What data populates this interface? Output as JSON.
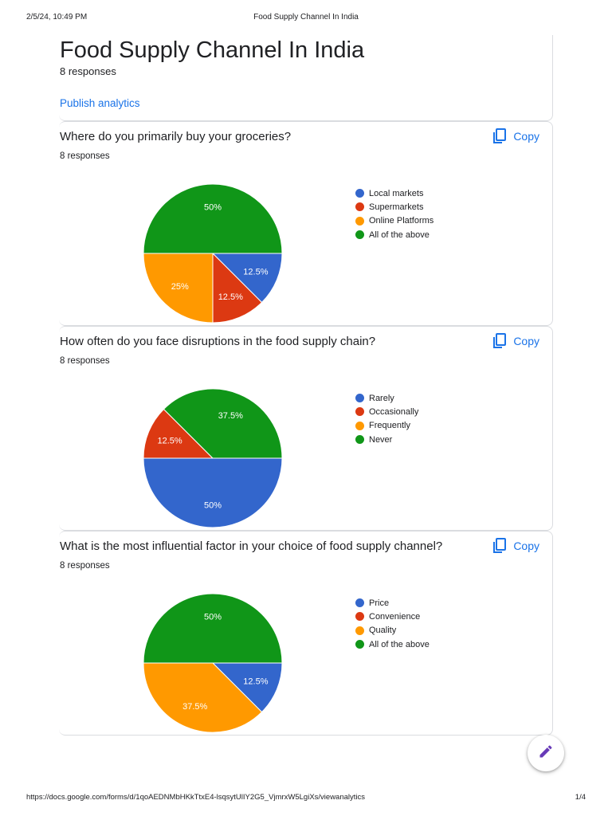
{
  "print_header": {
    "datetime": "2/5/24, 10:49 PM",
    "title": "Food Supply Channel In India"
  },
  "print_footer": {
    "url": "https://docs.google.com/forms/d/1qoAEDNMbHKkTtxE4-lsqsytUlIY2G5_VjmrxW5LgiXs/viewanalytics",
    "page": "1/4"
  },
  "form": {
    "title": "Food Supply Channel In India",
    "responses": "8 responses",
    "publish_label": "Publish analytics"
  },
  "copy_label": "Copy",
  "colors": {
    "blue": "#3366cc",
    "red": "#dc3912",
    "orange": "#ff9900",
    "green": "#109618",
    "link": "#1a73e8",
    "fab_icon": "#673ab7"
  },
  "icons": {
    "copy": "copy-icon",
    "edit": "pencil-icon"
  },
  "questions": [
    {
      "title": "Where do you primarily buy your groceries?",
      "responses": "8 responses",
      "legend": [
        "Local markets",
        "Supermarkets",
        "Online Platforms",
        "All of the above"
      ],
      "slice_labels": [
        "12.5%",
        "12.5%",
        "25%",
        "50%"
      ]
    },
    {
      "title": "How often do you face disruptions in the food supply chain?",
      "responses": "8 responses",
      "legend": [
        "Rarely",
        "Occasionally",
        "Frequently",
        "Never"
      ],
      "slice_labels": [
        "50%",
        "12.5%",
        "",
        "37.5%"
      ]
    },
    {
      "title": "What is the most influential factor in your choice of food supply channel?",
      "responses": "8 responses",
      "legend": [
        "Price",
        "Convenience",
        "Quality",
        "All of the above"
      ],
      "slice_labels": [
        "12.5%",
        "",
        "37.5%",
        "50%"
      ]
    }
  ],
  "chart_data": [
    {
      "type": "pie",
      "categories": [
        "Local markets",
        "Supermarkets",
        "Online Platforms",
        "All of the above"
      ],
      "values": [
        12.5,
        12.5,
        25,
        50
      ],
      "colors": [
        "#3366cc",
        "#dc3912",
        "#ff9900",
        "#109618"
      ],
      "legend": "right"
    },
    {
      "type": "pie",
      "categories": [
        "Rarely",
        "Occasionally",
        "Frequently",
        "Never"
      ],
      "values": [
        50,
        12.5,
        0,
        37.5
      ],
      "colors": [
        "#3366cc",
        "#dc3912",
        "#ff9900",
        "#109618"
      ],
      "legend": "right"
    },
    {
      "type": "pie",
      "categories": [
        "Price",
        "Convenience",
        "Quality",
        "All of the above"
      ],
      "values": [
        12.5,
        0,
        37.5,
        50
      ],
      "colors": [
        "#3366cc",
        "#dc3912",
        "#ff9900",
        "#109618"
      ],
      "legend": "right"
    }
  ]
}
